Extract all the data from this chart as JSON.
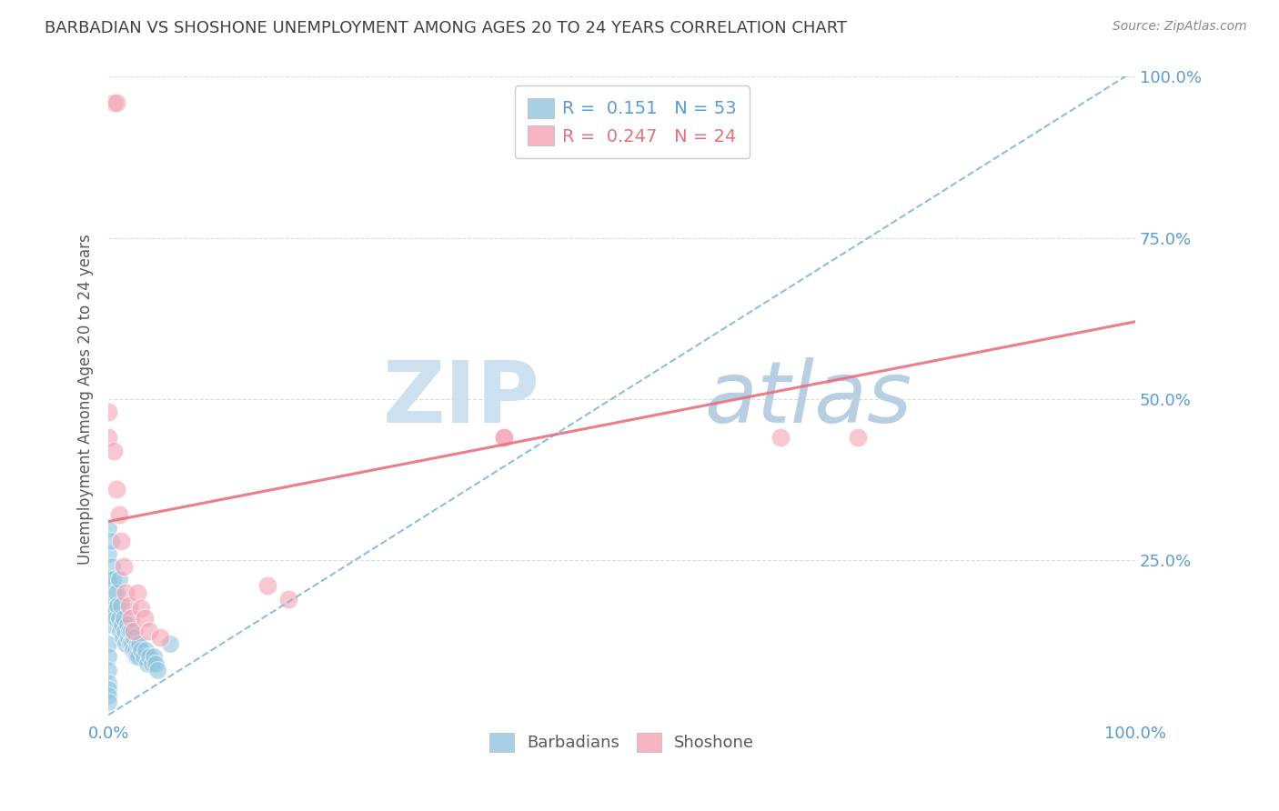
{
  "title": "BARBADIAN VS SHOSHONE UNEMPLOYMENT AMONG AGES 20 TO 24 YEARS CORRELATION CHART",
  "source": "Source: ZipAtlas.com",
  "ylabel": "Unemployment Among Ages 20 to 24 years",
  "xlim": [
    0,
    1.0
  ],
  "ylim": [
    0,
    1.0
  ],
  "blue_R": 0.151,
  "blue_N": 53,
  "pink_R": 0.247,
  "pink_N": 24,
  "barbadian_color": "#92c5de",
  "shoshone_color": "#f4a3b5",
  "blue_line_color": "#7ab3d8",
  "pink_line_color": "#e8707e",
  "watermark_zip": "ZIP",
  "watermark_atlas": "atlas",
  "watermark_color_zip": "#cde0ef",
  "watermark_color_atlas": "#b8cfe3",
  "background_color": "#ffffff",
  "grid_color": "#d3d3d3",
  "title_color": "#404040",
  "axis_label_color": "#595959",
  "tick_color": "#5b9bd5",
  "legend_text_color_blue": "#5b9bd5",
  "legend_text_color_pink": "#e8707e",
  "barbadians_x": [
    0.0,
    0.0,
    0.0,
    0.0,
    0.0,
    0.0,
    0.0,
    0.0,
    0.0,
    0.0,
    0.0,
    0.0,
    0.002,
    0.003,
    0.004,
    0.004,
    0.005,
    0.006,
    0.007,
    0.008,
    0.009,
    0.01,
    0.01,
    0.011,
    0.012,
    0.013,
    0.014,
    0.015,
    0.016,
    0.017,
    0.018,
    0.019,
    0.02,
    0.021,
    0.022,
    0.023,
    0.024,
    0.025,
    0.026,
    0.027,
    0.028,
    0.029,
    0.03,
    0.032,
    0.034,
    0.036,
    0.038,
    0.04,
    0.042,
    0.044,
    0.046,
    0.048,
    0.06
  ],
  "barbadians_y": [
    0.3,
    0.26,
    0.22,
    0.18,
    0.15,
    0.12,
    0.1,
    0.08,
    0.06,
    0.05,
    0.04,
    0.03,
    0.28,
    0.24,
    0.22,
    0.18,
    0.2,
    0.17,
    0.16,
    0.2,
    0.18,
    0.22,
    0.16,
    0.14,
    0.18,
    0.15,
    0.13,
    0.16,
    0.14,
    0.12,
    0.15,
    0.13,
    0.14,
    0.12,
    0.14,
    0.12,
    0.11,
    0.13,
    0.11,
    0.1,
    0.12,
    0.1,
    0.12,
    0.11,
    0.1,
    0.11,
    0.09,
    0.1,
    0.09,
    0.1,
    0.09,
    0.08,
    0.12
  ],
  "shoshone_x": [
    0.005,
    0.008,
    0.0,
    0.0,
    0.005,
    0.008,
    0.01,
    0.012,
    0.015,
    0.017,
    0.02,
    0.022,
    0.025,
    0.028,
    0.032,
    0.035,
    0.04,
    0.05,
    0.155,
    0.175,
    0.385,
    0.385,
    0.655,
    0.73
  ],
  "shoshone_y": [
    0.96,
    0.96,
    0.48,
    0.44,
    0.42,
    0.36,
    0.32,
    0.28,
    0.24,
    0.2,
    0.18,
    0.16,
    0.14,
    0.2,
    0.175,
    0.16,
    0.14,
    0.13,
    0.21,
    0.19,
    0.44,
    0.44,
    0.44,
    0.44
  ],
  "blue_trendline_x": [
    0.0,
    1.0
  ],
  "blue_trendline_y": [
    0.01,
    1.01
  ],
  "pink_trendline_x": [
    0.0,
    1.0
  ],
  "pink_trendline_y": [
    0.31,
    0.62
  ]
}
